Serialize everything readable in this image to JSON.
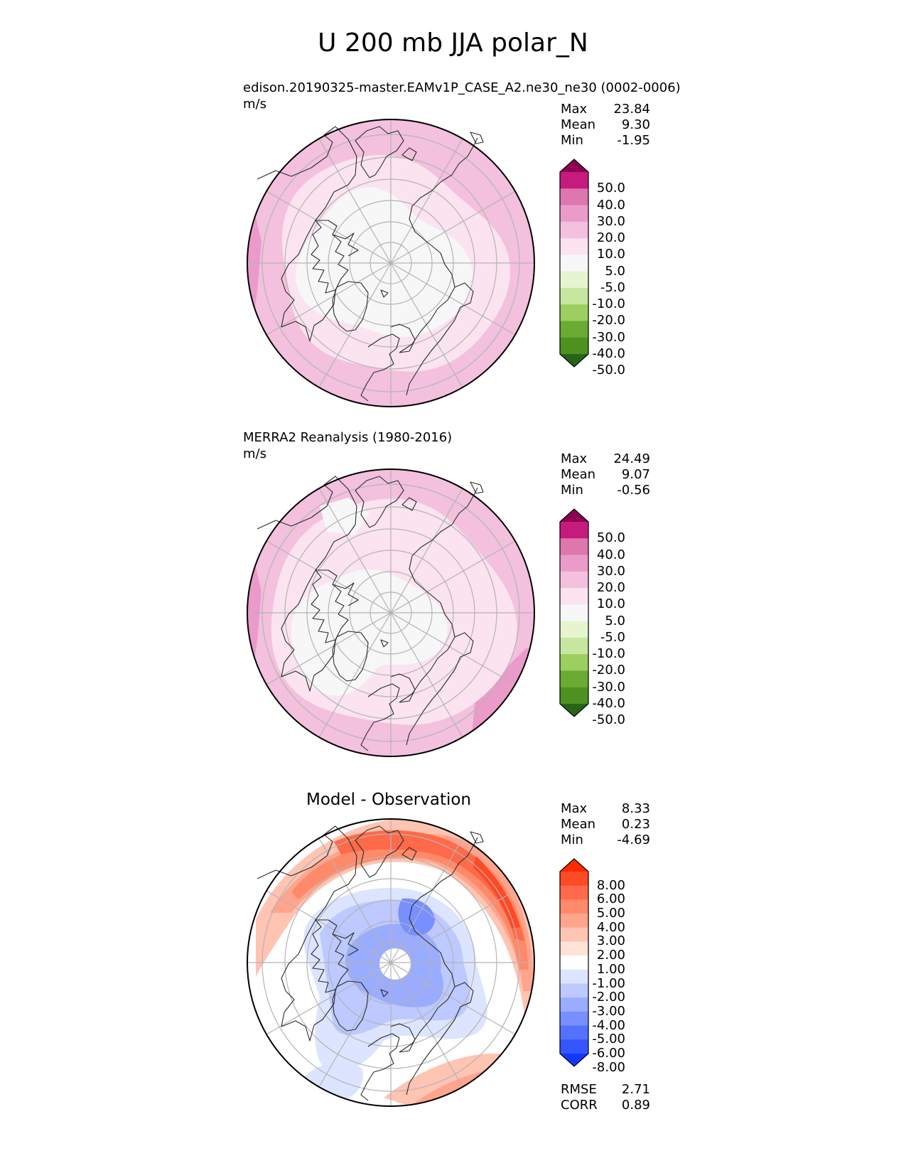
{
  "figure": {
    "title": "U 200 mb JJA polar_N",
    "colors": {
      "continent_line": "#2b2b2b",
      "grid_line": "#b4b4b4",
      "border": "#000000"
    }
  },
  "chart_data": [
    {
      "type": "heatmap",
      "projection": "polar stereographic (north)",
      "title": "edison.20190325-master.EAMv1P_CASE_A2.ne30_ne30 (0002-0006)",
      "units": "m/s",
      "stats": {
        "labels": [
          "Max",
          "Mean",
          "Min"
        ],
        "values": [
          "23.84",
          "9.30",
          "-1.95"
        ]
      },
      "colorbar": {
        "extend": "both",
        "tick_labels": [
          "50.0",
          "40.0",
          "30.0",
          "20.0",
          "10.0",
          "5.0",
          "-5.0",
          "-10.0",
          "-20.0",
          "-30.0",
          "-40.0",
          "-50.0"
        ],
        "colors": [
          "#8e0152",
          "#c51b7d",
          "#de77ae",
          "#ea9bc9",
          "#f3c0de",
          "#fbe3f0",
          "#f7f7f7",
          "#e6f5d0",
          "#c7e7a0",
          "#9dcf60",
          "#6aab34",
          "#4d9221",
          "#276419"
        ]
      },
      "field_levels": [
        "5.0",
        "10.0",
        "20.0",
        "30.0"
      ]
    },
    {
      "type": "heatmap",
      "projection": "polar stereographic (north)",
      "title": "MERRA2 Reanalysis (1980-2016)",
      "units": "m/s",
      "stats": {
        "labels": [
          "Max",
          "Mean",
          "Min"
        ],
        "values": [
          "24.49",
          "9.07",
          "-0.56"
        ]
      },
      "colorbar": {
        "extend": "both",
        "tick_labels": [
          "50.0",
          "40.0",
          "30.0",
          "20.0",
          "10.0",
          "5.0",
          "-5.0",
          "-10.0",
          "-20.0",
          "-30.0",
          "-40.0",
          "-50.0"
        ],
        "colors": [
          "#8e0152",
          "#c51b7d",
          "#de77ae",
          "#ea9bc9",
          "#f3c0de",
          "#fbe3f0",
          "#f7f7f7",
          "#e6f5d0",
          "#c7e7a0",
          "#9dcf60",
          "#6aab34",
          "#4d9221",
          "#276419"
        ]
      },
      "field_levels": [
        "5.0",
        "10.0",
        "20.0",
        "30.0"
      ]
    },
    {
      "type": "heatmap",
      "projection": "polar stereographic (north)",
      "title": "Model - Observation",
      "units": "",
      "stats": {
        "labels": [
          "Max",
          "Mean",
          "Min"
        ],
        "values": [
          "8.33",
          "0.23",
          "-4.69"
        ]
      },
      "metrics": {
        "labels": [
          "RMSE",
          "CORR"
        ],
        "values": [
          "2.71",
          "0.89"
        ]
      },
      "colorbar": {
        "extend": "both",
        "tick_labels": [
          "8.00",
          "6.00",
          "5.00",
          "4.00",
          "3.00",
          "2.00",
          "1.00",
          "-1.00",
          "-2.00",
          "-3.00",
          "-4.00",
          "-5.00",
          "-6.00",
          "-8.00"
        ],
        "colors": [
          "#ff2a00",
          "#ff4a26",
          "#ff6a4a",
          "#ff8a6a",
          "#ffa58e",
          "#ffc4b2",
          "#ffe2d8",
          "#ffffff",
          "#dde4ff",
          "#bdc9ff",
          "#9aacff",
          "#788fff",
          "#5572ff",
          "#3556ff",
          "#1038ff"
        ]
      }
    }
  ]
}
